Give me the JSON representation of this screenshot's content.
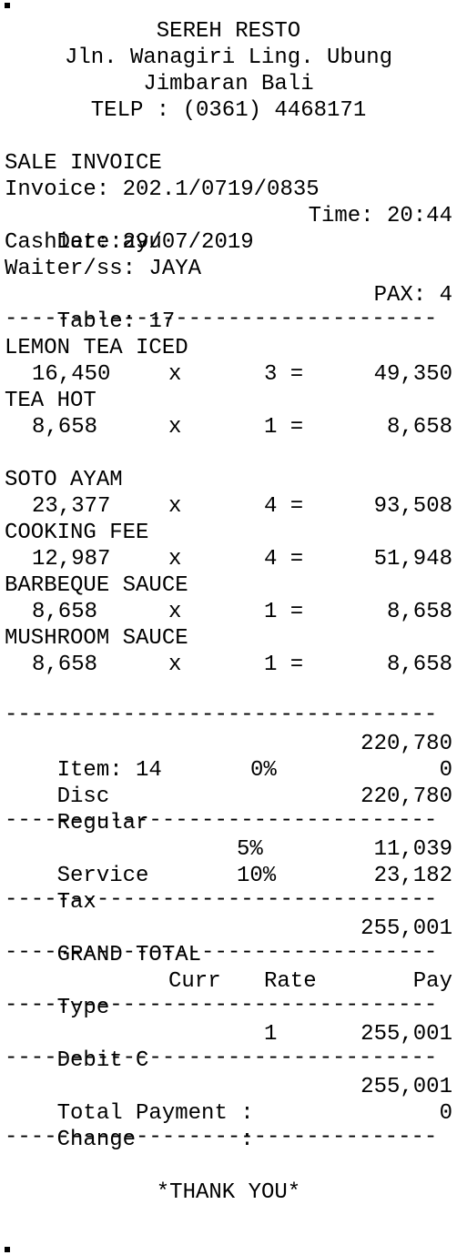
{
  "header": {
    "name": "SEREH RESTO",
    "address1": "Jln. Wanagiri Ling. Ubung",
    "address2": "Jimbaran Bali",
    "phone": "TELP : (0361) 4468171"
  },
  "info": {
    "doc_type": "SALE INVOICE",
    "invoice": "Invoice: 202.1/0719/0835",
    "date": "Date:29/07/2019",
    "time": "Time: 20:44",
    "cashier": "Cashier: ayu",
    "waiter": "Waiter/ss: JAYA",
    "table": "Table: 17",
    "pax": "PAX: 4"
  },
  "separator": "---------------------------------",
  "items": [
    {
      "name": "LEMON TEA ICED",
      "price": "16,450",
      "x": "x",
      "qty": "3 =",
      "total": "49,350"
    },
    {
      "name": "TEA HOT",
      "price": "8,658",
      "x": "x",
      "qty": "1 =",
      "total": "8,658"
    },
    {
      "name": "SOTO AYAM",
      "price": "23,377",
      "x": "x",
      "qty": "4 =",
      "total": "93,508"
    },
    {
      "name": "COOKING FEE",
      "price": "12,987",
      "x": "x",
      "qty": "4 =",
      "total": "51,948"
    },
    {
      "name": "BARBEQUE SAUCE",
      "price": "8,658",
      "x": "x",
      "qty": "1 =",
      "total": "8,658"
    },
    {
      "name": "MUSHROOM SAUCE",
      "price": "8,658",
      "x": "x",
      "qty": "1 =",
      "total": "8,658"
    }
  ],
  "summary": {
    "item_label": "Item: 14",
    "item_value": "220,780",
    "disc_label": "Disc",
    "disc_pct": "0%",
    "disc_value": "0",
    "regular_label": "Regular",
    "regular_value": "220,780",
    "service_label": "Service",
    "service_pct": "5%",
    "service_value": "11,039",
    "tax_label": "Tax",
    "tax_pct": "10%",
    "tax_value": "23,182",
    "grand_label": "GRAND TOTAL",
    "grand_value": "255,001"
  },
  "payment": {
    "h_type": "Type",
    "h_curr": "Curr",
    "h_rate": "Rate",
    "h_pay": "Pay",
    "type": "Debit C",
    "rate": "1",
    "pay": "255,001",
    "total_label": "Total Payment :",
    "total_value": "255,001",
    "change_label": "Change        :",
    "change_value": "0"
  },
  "footer": "*THANK YOU*"
}
